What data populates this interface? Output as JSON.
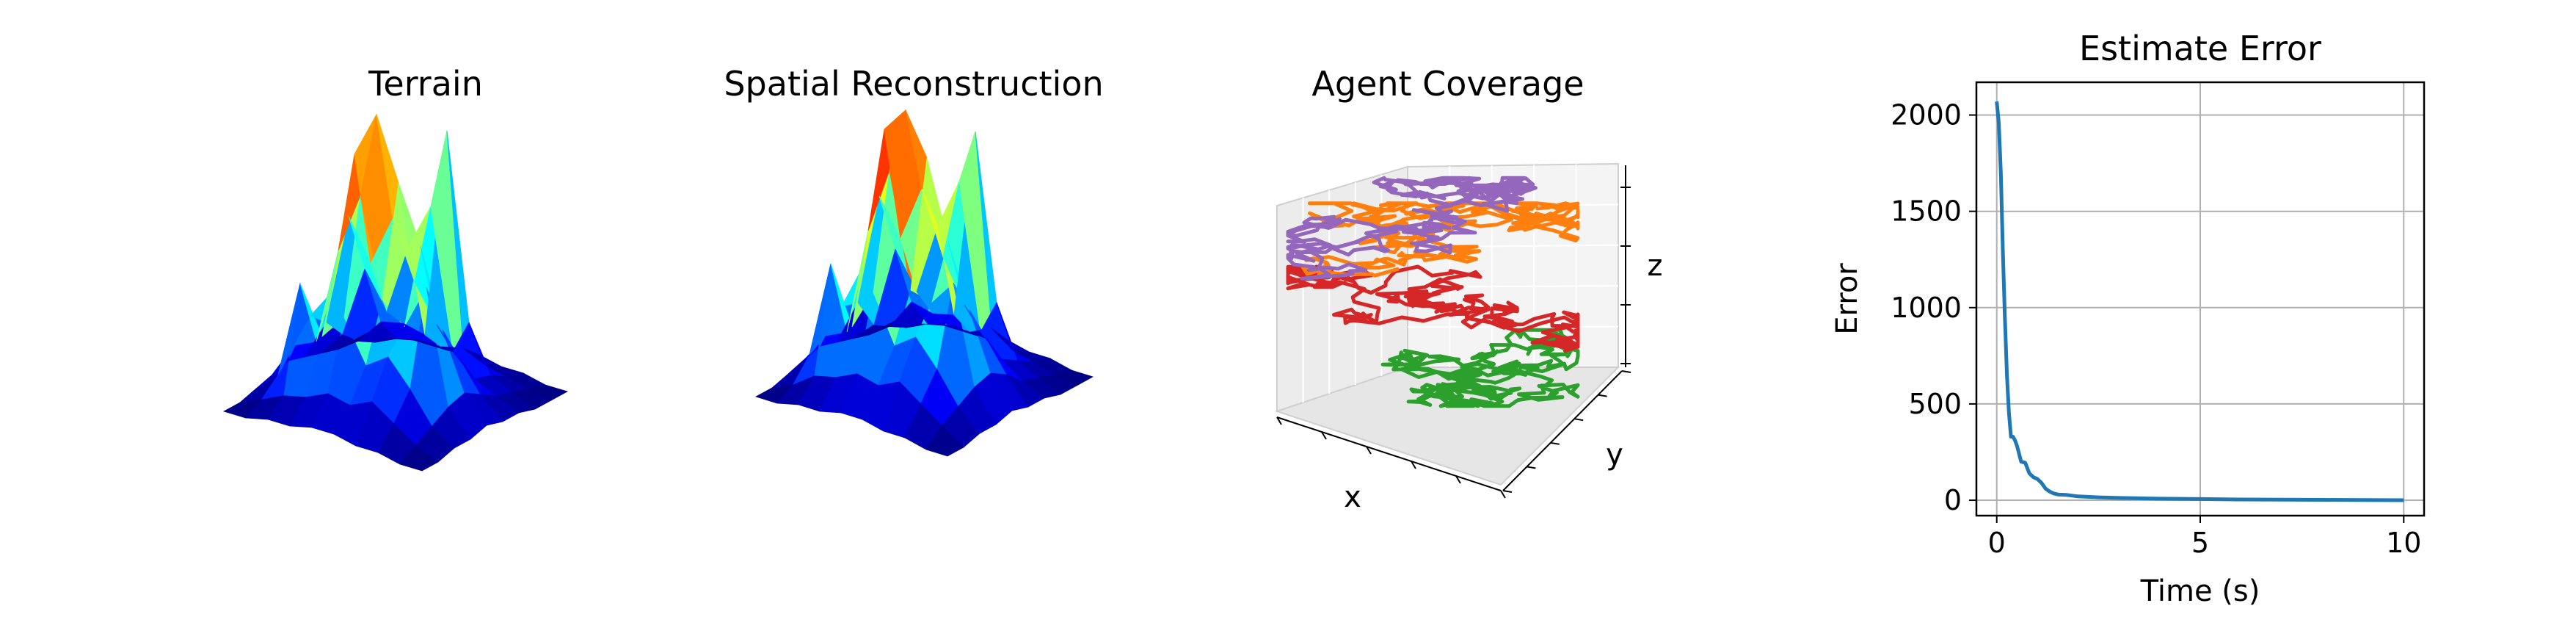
{
  "chart_data": [
    {
      "type": "surface3d",
      "title": "Terrain",
      "colormap": "jet",
      "grid_size": [
        10,
        10
      ],
      "z": [
        [
          0.0,
          0.0,
          0.1,
          0.2,
          0.3,
          0.2,
          0.1,
          0.0,
          0.0,
          0.0
        ],
        [
          0.0,
          0.2,
          0.5,
          0.9,
          1.3,
          1.0,
          0.6,
          0.3,
          0.1,
          0.0
        ],
        [
          0.1,
          0.4,
          2.4,
          1.1,
          1.9,
          3.2,
          2.0,
          0.8,
          0.3,
          0.1
        ],
        [
          0.1,
          0.5,
          1.5,
          3.0,
          4.7,
          2.4,
          1.3,
          0.9,
          0.4,
          0.1
        ],
        [
          0.2,
          0.7,
          2.0,
          4.2,
          5.6,
          3.4,
          2.7,
          0.8,
          0.4,
          0.1
        ],
        [
          0.2,
          0.6,
          1.2,
          2.3,
          4.4,
          2.3,
          3.6,
          4.9,
          0.5,
          0.2
        ],
        [
          0.1,
          0.8,
          1.5,
          1.9,
          3.3,
          1.6,
          0.9,
          1.3,
          0.3,
          0.1
        ],
        [
          0.1,
          0.5,
          1.0,
          2.8,
          1.8,
          1.1,
          0.5,
          0.4,
          0.2,
          0.1
        ],
        [
          0.0,
          0.2,
          0.4,
          0.6,
          0.7,
          0.5,
          0.3,
          0.2,
          0.1,
          0.0
        ],
        [
          0.0,
          0.0,
          0.1,
          0.1,
          0.2,
          0.1,
          0.1,
          0.0,
          0.0,
          0.0
        ]
      ]
    },
    {
      "type": "surface3d",
      "title": "Spatial Reconstruction",
      "colormap": "jet",
      "grid_size": [
        10,
        10
      ],
      "z": [
        [
          0.0,
          0.0,
          0.1,
          0.2,
          0.3,
          0.2,
          0.1,
          0.0,
          0.0,
          0.0
        ],
        [
          0.0,
          0.2,
          0.6,
          0.8,
          1.2,
          1.1,
          0.5,
          0.3,
          0.1,
          0.0
        ],
        [
          0.1,
          0.5,
          2.5,
          1.0,
          2.1,
          3.3,
          2.1,
          0.9,
          0.3,
          0.1
        ],
        [
          0.1,
          0.6,
          1.4,
          3.1,
          4.9,
          2.6,
          1.4,
          0.8,
          0.4,
          0.1
        ],
        [
          0.2,
          0.8,
          2.2,
          4.4,
          5.4,
          3.7,
          2.8,
          0.9,
          0.4,
          0.1
        ],
        [
          0.2,
          0.7,
          1.3,
          2.2,
          4.6,
          2.5,
          3.8,
          4.6,
          0.6,
          0.2
        ],
        [
          0.1,
          0.9,
          1.6,
          2.1,
          3.1,
          1.7,
          1.0,
          1.4,
          0.3,
          0.1
        ],
        [
          0.1,
          0.6,
          1.1,
          2.6,
          1.9,
          1.2,
          0.6,
          0.4,
          0.2,
          0.1
        ],
        [
          0.0,
          0.3,
          0.5,
          0.7,
          0.8,
          0.6,
          0.3,
          0.2,
          0.1,
          0.0
        ],
        [
          0.0,
          0.0,
          0.1,
          0.1,
          0.2,
          0.1,
          0.1,
          0.0,
          0.0,
          0.0
        ]
      ]
    },
    {
      "type": "line3d",
      "title": "Agent Coverage",
      "xlabel": "x",
      "ylabel": "y",
      "zlabel": "z",
      "series": [
        {
          "color": "#2ca02c",
          "zrange": [
            0.05,
            0.35
          ]
        },
        {
          "color": "#d62728",
          "zrange": [
            0.25,
            0.6
          ]
        },
        {
          "color": "#ff7f0e",
          "zrange": [
            0.55,
            0.85
          ]
        },
        {
          "color": "#9467bd",
          "zrange": [
            0.45,
            0.95
          ]
        }
      ]
    },
    {
      "type": "line",
      "title": "Estimate Error",
      "xlabel": "Time (s)",
      "ylabel": "Error",
      "xlim": [
        -0.5,
        10.5
      ],
      "ylim": [
        -80,
        2170
      ],
      "xticks": [
        0,
        5,
        10
      ],
      "yticks": [
        0,
        500,
        1000,
        1500,
        2000
      ],
      "grid": true,
      "series": [
        {
          "color": "#1f77b4",
          "x": [
            0.0,
            0.05,
            0.1,
            0.15,
            0.2,
            0.25,
            0.3,
            0.35,
            0.4,
            0.45,
            0.5,
            0.6,
            0.7,
            0.8,
            0.9,
            1.0,
            1.1,
            1.2,
            1.3,
            1.4,
            1.5,
            1.7,
            2.0,
            2.5,
            3.0,
            4.0,
            5.0,
            6.0,
            7.0,
            8.0,
            9.0,
            10.0
          ],
          "y": [
            2070,
            1960,
            1700,
            1300,
            950,
            650,
            450,
            330,
            330,
            310,
            280,
            200,
            195,
            140,
            120,
            110,
            90,
            60,
            45,
            35,
            30,
            28,
            20,
            15,
            12,
            8,
            6,
            4,
            3,
            2,
            1,
            0
          ]
        }
      ]
    }
  ]
}
